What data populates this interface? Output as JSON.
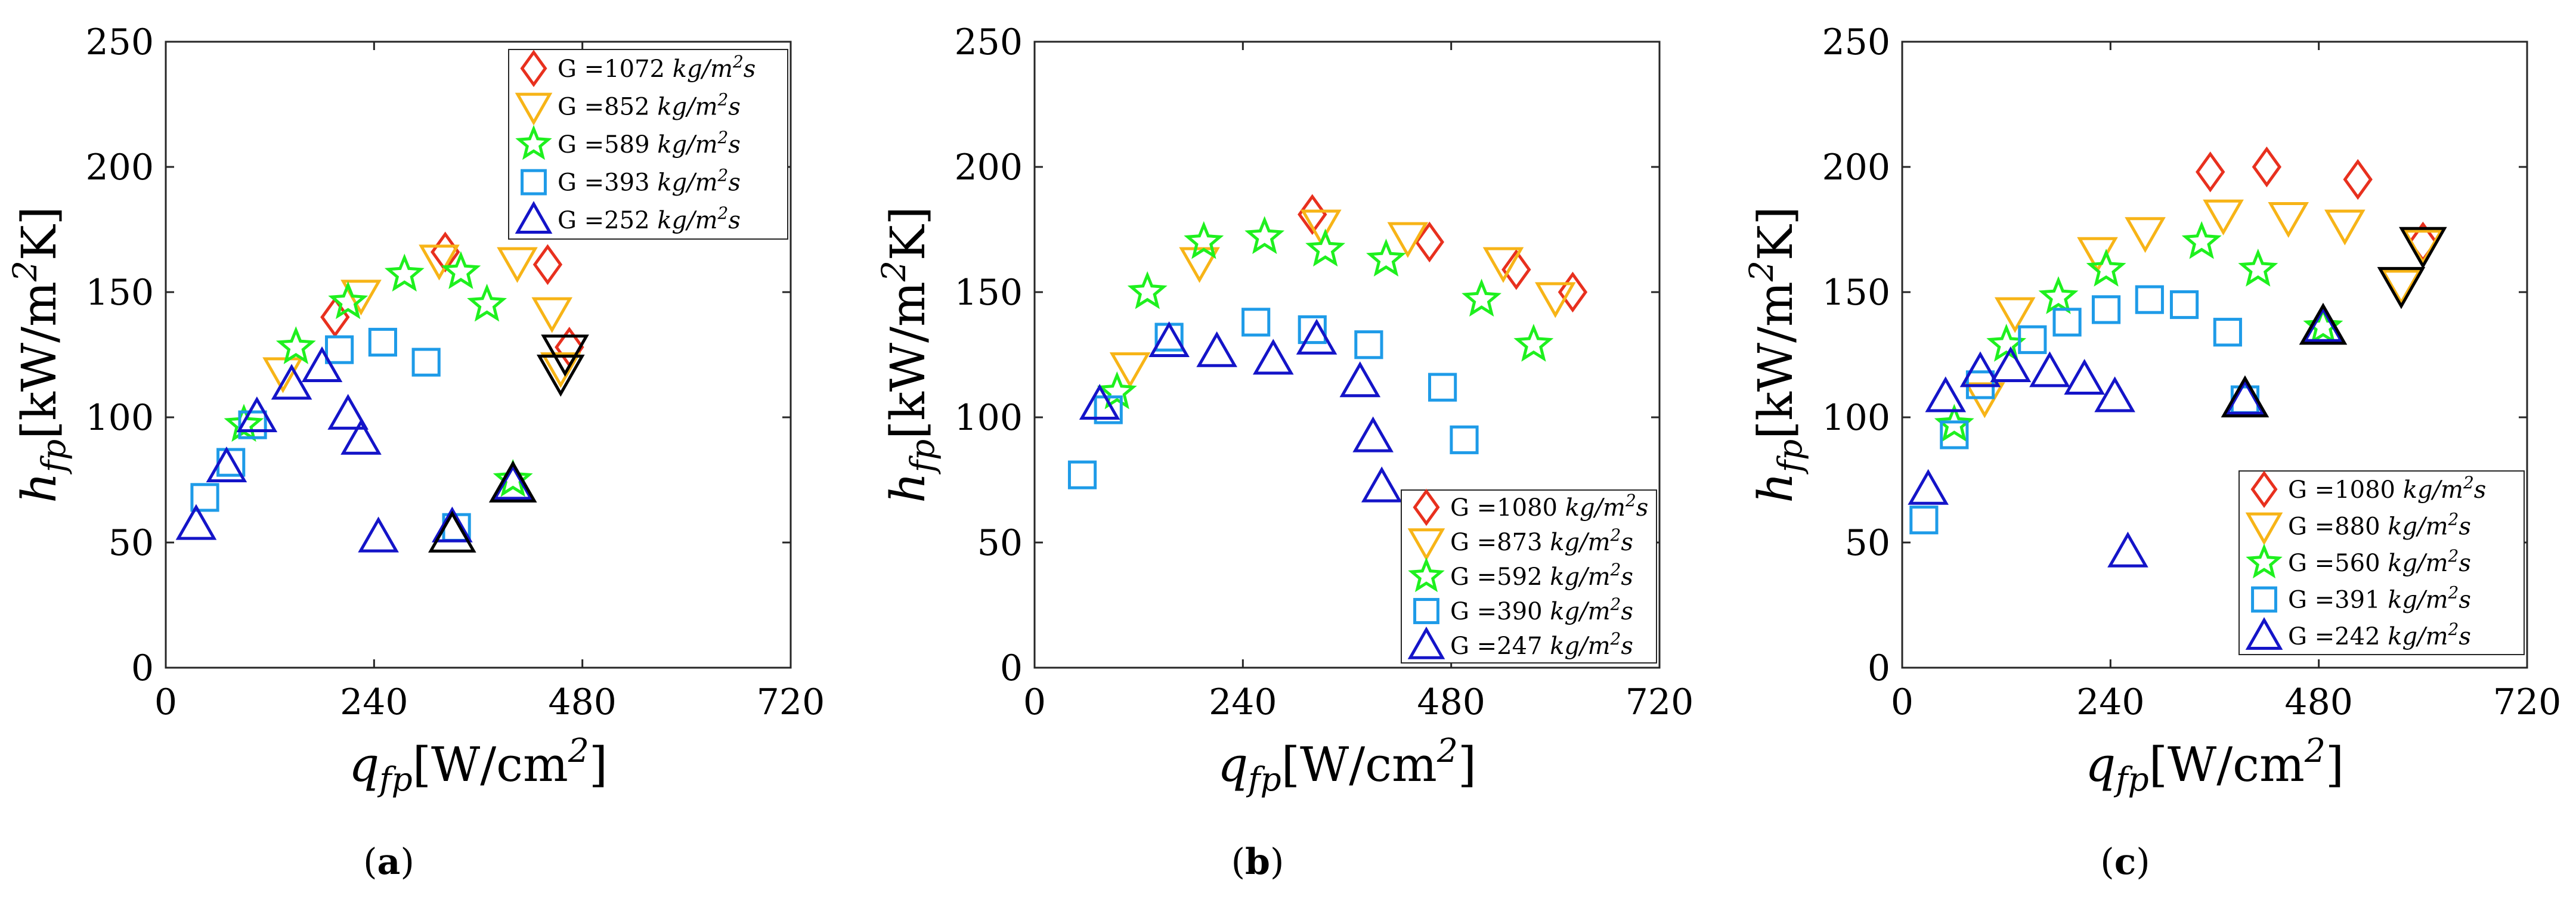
{
  "figure": {
    "x_axis_label": {
      "base": "q",
      "sub": "fp",
      "rest": "[W/cm",
      "sup": "2",
      "close": "]"
    },
    "y_axis_label": {
      "base": "h",
      "sub": "fp",
      "rest": "[kW/m",
      "sup": "2",
      "tail": "K]"
    },
    "panel_labels": [
      {
        "open": "(",
        "letter": "a",
        "close": ")"
      },
      {
        "open": "(",
        "letter": "b",
        "close": ")"
      },
      {
        "open": "(",
        "letter": "c",
        "close": ")"
      }
    ],
    "colors": {
      "diamond": "#e8301e",
      "down_triangle": "#f7b417",
      "star": "#1ef01e",
      "square": "#1e9be8",
      "up_triangle": "#1414c8",
      "highlight": "#000000"
    }
  },
  "chart_data": [
    {
      "type": "scatter",
      "xlabel": "q_fp[W/cm^2]",
      "ylabel": "h_fp[kW/m^2K]",
      "xlim": [
        0,
        720
      ],
      "ylim": [
        0,
        250
      ],
      "x_ticks": [
        "0",
        "240",
        "480",
        "720"
      ],
      "y_ticks": [
        "0",
        "50",
        "100",
        "150",
        "200",
        "250"
      ],
      "legend_position": "top-right",
      "series": [
        {
          "name": "G =1072 kg/m2s",
          "legend_prefix": "G =1072",
          "marker": "diamond",
          "points": [
            [
              195,
              140
            ],
            [
              322,
              166
            ],
            [
              440,
              161
            ],
            [
              465,
              128
            ]
          ],
          "black_outline_points": []
        },
        {
          "name": "G =852 kg/m2s",
          "legend_prefix": "G =852",
          "marker": "down_triangle",
          "points": [
            [
              135,
              118
            ],
            [
              225,
              149
            ],
            [
              315,
              163
            ],
            [
              405,
              162
            ],
            [
              445,
              142
            ],
            [
              455,
              120
            ]
          ],
          "black_outline_points": [
            [
              460,
              126
            ],
            [
              455,
              118
            ]
          ]
        },
        {
          "name": "G =589 kg/m2s",
          "legend_prefix": "G =589",
          "marker": "star",
          "points": [
            [
              90,
              97
            ],
            [
              150,
              128
            ],
            [
              210,
              146
            ],
            [
              275,
              157
            ],
            [
              340,
              158
            ],
            [
              370,
              145
            ],
            [
              400,
              75
            ]
          ],
          "black_outline_points": []
        },
        {
          "name": "G =393 kg/m2s",
          "legend_prefix": "G =393",
          "marker": "square",
          "points": [
            [
              45,
              68
            ],
            [
              75,
              82
            ],
            [
              100,
              97
            ],
            [
              200,
              127
            ],
            [
              250,
              130
            ],
            [
              300,
              122
            ],
            [
              335,
              56
            ]
          ],
          "black_outline_points": []
        },
        {
          "name": "G =252 kg/m2s",
          "legend_prefix": "G =252",
          "marker": "up_triangle",
          "points": [
            [
              35,
              57
            ],
            [
              70,
              80
            ],
            [
              105,
              100
            ],
            [
              145,
              113
            ],
            [
              180,
              120
            ],
            [
              210,
              101
            ],
            [
              225,
              91
            ],
            [
              245,
              52
            ],
            [
              330,
              56
            ],
            [
              400,
              73
            ]
          ],
          "black_outline_points": [
            [
              330,
              53
            ],
            [
              400,
              73
            ]
          ]
        }
      ]
    },
    {
      "type": "scatter",
      "xlabel": "q_fp[W/cm^2]",
      "ylabel": "h_fp[kW/m^2K]",
      "xlim": [
        0,
        720
      ],
      "ylim": [
        0,
        250
      ],
      "x_ticks": [
        "0",
        "240",
        "480",
        "720"
      ],
      "y_ticks": [
        "0",
        "50",
        "100",
        "150",
        "200",
        "250"
      ],
      "legend_position": "bottom-right",
      "series": [
        {
          "name": "G =1080 kg/m2s",
          "legend_prefix": "G =1080",
          "marker": "diamond",
          "points": [
            [
              320,
              181
            ],
            [
              455,
              170
            ],
            [
              555,
              159
            ],
            [
              620,
              150
            ]
          ],
          "black_outline_points": []
        },
        {
          "name": "G =873 kg/m2s",
          "legend_prefix": "G =873",
          "marker": "down_triangle",
          "points": [
            [
              110,
              120
            ],
            [
              190,
              162
            ],
            [
              330,
              177
            ],
            [
              430,
              172
            ],
            [
              540,
              162
            ],
            [
              600,
              148
            ]
          ],
          "black_outline_points": []
        },
        {
          "name": "G =592 kg/m2s",
          "legend_prefix": "G =592",
          "marker": "star",
          "points": [
            [
              95,
              110
            ],
            [
              130,
              150
            ],
            [
              195,
              170
            ],
            [
              265,
              172
            ],
            [
              335,
              167
            ],
            [
              405,
              163
            ],
            [
              515,
              147
            ],
            [
              575,
              129
            ]
          ],
          "black_outline_points": []
        },
        {
          "name": "G =390 kg/m2s",
          "legend_prefix": "G =390",
          "marker": "square",
          "points": [
            [
              55,
              77
            ],
            [
              85,
              103
            ],
            [
              155,
              132
            ],
            [
              255,
              138
            ],
            [
              320,
              135
            ],
            [
              385,
              129
            ],
            [
              470,
              112
            ],
            [
              495,
              91
            ]
          ],
          "black_outline_points": []
        },
        {
          "name": "G =247 kg/m2s",
          "legend_prefix": "G =247",
          "marker": "up_triangle",
          "points": [
            [
              75,
              105
            ],
            [
              155,
              130
            ],
            [
              210,
              126
            ],
            [
              275,
              123
            ],
            [
              325,
              131
            ],
            [
              375,
              114
            ],
            [
              390,
              92
            ],
            [
              400,
              72
            ]
          ],
          "black_outline_points": []
        }
      ]
    },
    {
      "type": "scatter",
      "xlabel": "q_fp[W/cm^2]",
      "ylabel": "h_fp[kW/m^2K]",
      "xlim": [
        0,
        720
      ],
      "ylim": [
        0,
        250
      ],
      "x_ticks": [
        "0",
        "240",
        "480",
        "720"
      ],
      "y_ticks": [
        "0",
        "50",
        "100",
        "150",
        "200",
        "250"
      ],
      "legend_position": "bottom-right",
      "series": [
        {
          "name": "G =1080 kg/m2s",
          "legend_prefix": "G =1080",
          "marker": "diamond",
          "points": [
            [
              355,
              198
            ],
            [
              420,
              200
            ],
            [
              525,
              195
            ],
            [
              600,
              170
            ]
          ],
          "black_outline_points": []
        },
        {
          "name": "G =880 kg/m2s",
          "legend_prefix": "G =880",
          "marker": "down_triangle",
          "points": [
            [
              95,
              108
            ],
            [
              130,
              142
            ],
            [
              225,
              166
            ],
            [
              280,
              174
            ],
            [
              370,
              181
            ],
            [
              445,
              180
            ],
            [
              510,
              177
            ],
            [
              575,
              153
            ],
            [
              600,
              169
            ]
          ],
          "black_outline_points": [
            [
              575,
              153
            ],
            [
              600,
              169
            ]
          ]
        },
        {
          "name": "G =560 kg/m2s",
          "legend_prefix": "G =560",
          "marker": "star",
          "points": [
            [
              60,
              97
            ],
            [
              120,
              129
            ],
            [
              180,
              148
            ],
            [
              235,
              159
            ],
            [
              345,
              170
            ],
            [
              410,
              159
            ],
            [
              485,
              136
            ]
          ],
          "black_outline_points": []
        },
        {
          "name": "G =391 kg/m2s",
          "legend_prefix": "G =391",
          "marker": "square",
          "points": [
            [
              25,
              59
            ],
            [
              60,
              93
            ],
            [
              90,
              113
            ],
            [
              150,
              131
            ],
            [
              190,
              138
            ],
            [
              235,
              143
            ],
            [
              285,
              147
            ],
            [
              325,
              145
            ],
            [
              375,
              134
            ],
            [
              395,
              107
            ]
          ],
          "black_outline_points": []
        },
        {
          "name": "G =242 kg/m2s",
          "legend_prefix": "G =242",
          "marker": "up_triangle",
          "points": [
            [
              30,
              71
            ],
            [
              50,
              108
            ],
            [
              90,
              118
            ],
            [
              125,
              120
            ],
            [
              170,
              118
            ],
            [
              210,
              115
            ],
            [
              245,
              108
            ],
            [
              260,
              46
            ],
            [
              395,
              107
            ],
            [
              485,
              136
            ]
          ],
          "black_outline_points": [
            [
              395,
              107
            ],
            [
              485,
              136
            ]
          ]
        }
      ]
    }
  ]
}
